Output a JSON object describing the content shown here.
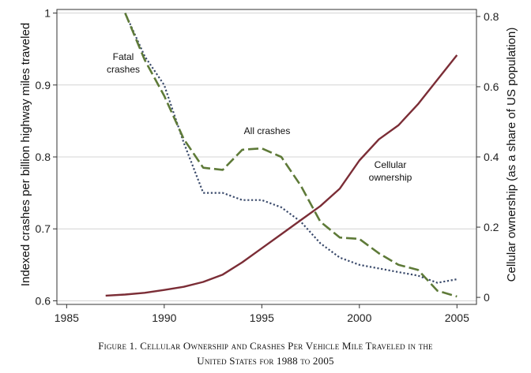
{
  "chart_data": {
    "type": "line",
    "title": "",
    "xlabel": "",
    "ylabel": "Indexed crashes per billion highway miles traveled",
    "ylabel_right": "Cellular ownership (as a share of US population)",
    "xlim": [
      1984.5,
      2006
    ],
    "ylim": [
      0.595,
      1.005
    ],
    "ylim_right": [
      -0.02,
      0.82
    ],
    "x_ticks": [
      1985,
      1990,
      1995,
      2000,
      2005
    ],
    "y_ticks": [
      0.6,
      0.7,
      0.8,
      0.9,
      1
    ],
    "y_tick_labels": [
      "0.6",
      "0.7",
      "0.8",
      "0.9",
      "1"
    ],
    "y_right_ticks": [
      0,
      0.2,
      0.4,
      0.6,
      0.8
    ],
    "y_right_tick_labels": [
      "0",
      "0.2",
      "0.4",
      "0.6",
      "0.8"
    ],
    "grid": true,
    "series": [
      {
        "name": "Fatal crashes",
        "axis": "left",
        "style": "dotted",
        "color": "#3a4a6b",
        "x": [
          1988,
          1989,
          1990,
          1991,
          1992,
          1993,
          1994,
          1995,
          1996,
          1997,
          1998,
          1999,
          2000,
          2001,
          2002,
          2003,
          2004,
          2005
        ],
        "y": [
          1.0,
          0.94,
          0.9,
          0.82,
          0.75,
          0.75,
          0.74,
          0.74,
          0.73,
          0.71,
          0.68,
          0.66,
          0.65,
          0.645,
          0.64,
          0.635,
          0.625,
          0.63
        ]
      },
      {
        "name": "All crashes",
        "axis": "left",
        "style": "dashed",
        "color": "#5e7a38",
        "x": [
          1988,
          1989,
          1990,
          1991,
          1992,
          1993,
          1994,
          1995,
          1996,
          1997,
          1998,
          1999,
          2000,
          2001,
          2002,
          2003,
          2004,
          2005
        ],
        "y": [
          1.0,
          0.935,
          0.885,
          0.825,
          0.785,
          0.782,
          0.81,
          0.812,
          0.8,
          0.76,
          0.71,
          0.688,
          0.686,
          0.666,
          0.65,
          0.643,
          0.614,
          0.606
        ]
      },
      {
        "name": "Cellular ownership",
        "axis": "right",
        "style": "solid",
        "color": "#7b2d36",
        "x": [
          1987,
          1988,
          1989,
          1990,
          1991,
          1992,
          1993,
          1994,
          1995,
          1996,
          1997,
          1998,
          1999,
          2000,
          2001,
          2002,
          2003,
          2004,
          2005
        ],
        "y": [
          0.005,
          0.008,
          0.013,
          0.021,
          0.03,
          0.044,
          0.065,
          0.1,
          0.14,
          0.18,
          0.22,
          0.26,
          0.31,
          0.39,
          0.45,
          0.49,
          0.55,
          0.62,
          0.69
        ]
      }
    ],
    "annotations": [
      {
        "id": "fatal",
        "lines": [
          "Fatal",
          "crashes"
        ]
      },
      {
        "id": "all",
        "lines": [
          "All crashes"
        ]
      },
      {
        "id": "cell",
        "lines": [
          "Cellular",
          "ownership"
        ]
      }
    ]
  },
  "caption": {
    "line1": "Figure 1. Cellular Ownership and Crashes Per Vehicle Mile Traveled in the",
    "line2": "United States for 1988 to 2005"
  }
}
